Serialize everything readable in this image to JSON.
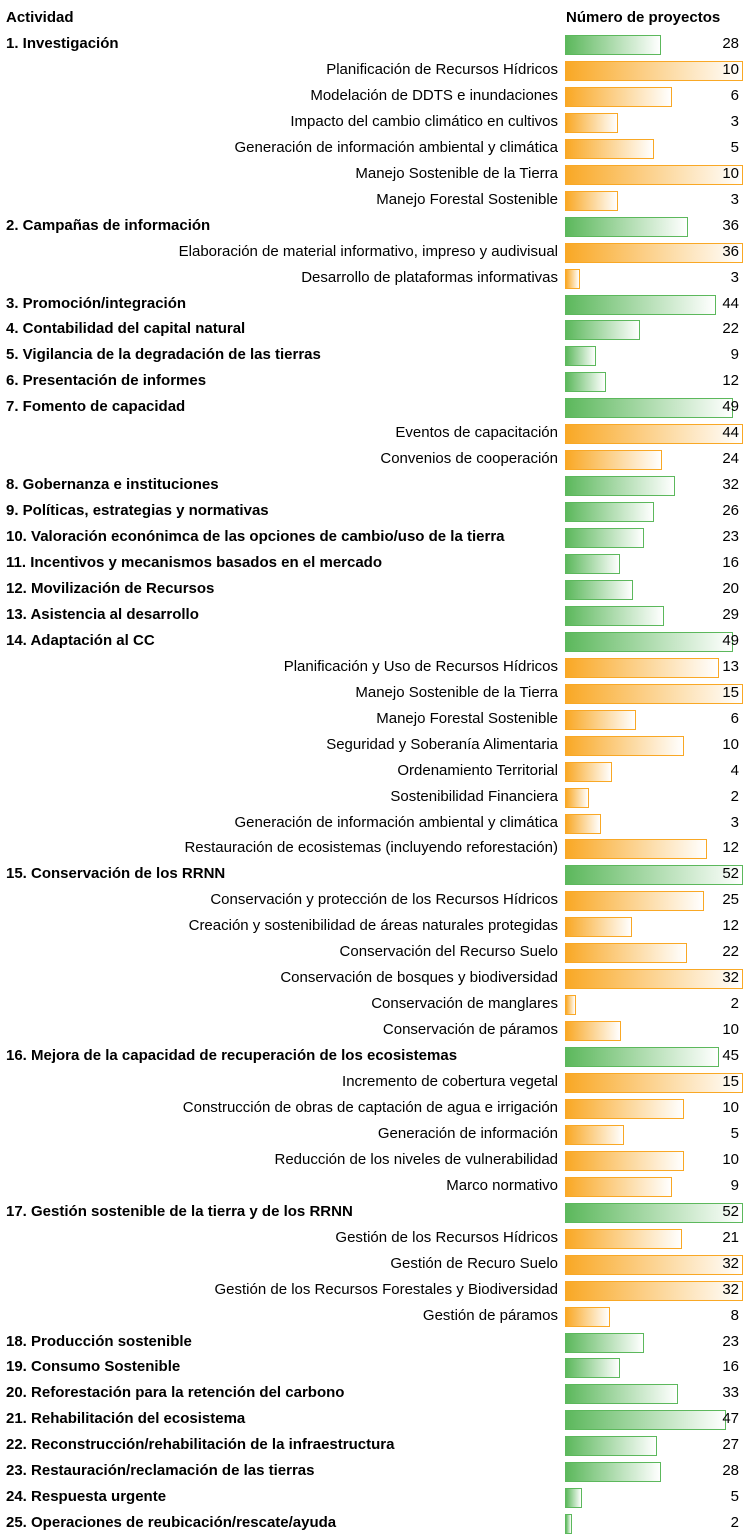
{
  "header": {
    "activity": "Actividad",
    "count": "Número de proyectos"
  },
  "rows": [
    {
      "label": "1. Investigación",
      "value": 28,
      "main": true
    },
    {
      "label": "Planificación de Recursos Hídricos",
      "value": 10,
      "main": false
    },
    {
      "label": "Modelación de DDTS e inundaciones",
      "value": 6,
      "main": false
    },
    {
      "label": "Impacto del cambio climático en cultivos",
      "value": 3,
      "main": false
    },
    {
      "label": "Generación de información ambiental y climática",
      "value": 5,
      "main": false
    },
    {
      "label": "Manejo Sostenible de la Tierra",
      "value": 10,
      "main": false
    },
    {
      "label": "Manejo Forestal Sostenible",
      "value": 3,
      "main": false
    },
    {
      "label": "2. Campañas de información",
      "value": 36,
      "main": true
    },
    {
      "label": "Elaboración de material informativo, impreso y audivisual",
      "value": 36,
      "main": false
    },
    {
      "label": "Desarrollo de plataformas informativas",
      "value": 3,
      "main": false
    },
    {
      "label": "3. Promoción/integración",
      "value": 44,
      "main": true
    },
    {
      "label": "4. Contabilidad del capital natural",
      "value": 22,
      "main": true
    },
    {
      "label": "5. Vigilancia de la degradación de las tierras",
      "value": 9,
      "main": true
    },
    {
      "label": "6. Presentación de informes",
      "value": 12,
      "main": true
    },
    {
      "label": "7. Fomento de capacidad",
      "value": 49,
      "main": true
    },
    {
      "label": "Eventos de capacitación",
      "value": 44,
      "main": false
    },
    {
      "label": "Convenios de cooperación",
      "value": 24,
      "main": false
    },
    {
      "label": "8. Gobernanza e instituciones",
      "value": 32,
      "main": true
    },
    {
      "label": "9. Políticas, estrategias y normativas",
      "value": 26,
      "main": true
    },
    {
      "label": "10. Valoración econónimca de las opciones de cambio/uso de la tierra",
      "value": 23,
      "main": true
    },
    {
      "label": "11. Incentivos y mecanismos basados en el mercado",
      "value": 16,
      "main": true
    },
    {
      "label": "12. Movilización de Recursos",
      "value": 20,
      "main": true
    },
    {
      "label": "13. Asistencia al desarrollo",
      "value": 29,
      "main": true
    },
    {
      "label": "14. Adaptación al CC",
      "value": 49,
      "main": true
    },
    {
      "label": "Planificación y Uso de Recursos Hídricos",
      "value": 13,
      "main": false
    },
    {
      "label": "Manejo Sostenible de la Tierra",
      "value": 15,
      "main": false
    },
    {
      "label": "Manejo Forestal Sostenible",
      "value": 6,
      "main": false
    },
    {
      "label": "Seguridad y Soberanía Alimentaria",
      "value": 10,
      "main": false
    },
    {
      "label": "Ordenamiento Territorial",
      "value": 4,
      "main": false
    },
    {
      "label": "Sostenibilidad Financiera",
      "value": 2,
      "main": false
    },
    {
      "label": "Generación de información ambiental y climática",
      "value": 3,
      "main": false
    },
    {
      "label": "Restauración de ecosistemas (incluyendo reforestación)",
      "value": 12,
      "main": false
    },
    {
      "label": "15. Conservación de los RRNN",
      "value": 52,
      "main": true
    },
    {
      "label": "Conservación y protección de los Recursos Hídricos",
      "value": 25,
      "main": false
    },
    {
      "label": "Creación y sostenibilidad de áreas naturales protegidas",
      "value": 12,
      "main": false
    },
    {
      "label": "Conservación del Recurso Suelo",
      "value": 22,
      "main": false
    },
    {
      "label": "Conservación de bosques y biodiversidad",
      "value": 32,
      "main": false
    },
    {
      "label": "Conservación de manglares",
      "value": 2,
      "main": false
    },
    {
      "label": "Conservación de páramos",
      "value": 10,
      "main": false
    },
    {
      "label": "16. Mejora de la capacidad de recuperación de los ecosistemas",
      "value": 45,
      "main": true
    },
    {
      "label": "Incremento de cobertura vegetal",
      "value": 15,
      "main": false
    },
    {
      "label": "Construcción de obras de captación de agua e irrigación",
      "value": 10,
      "main": false
    },
    {
      "label": "Generación de información",
      "value": 5,
      "main": false
    },
    {
      "label": "Reducción de los niveles de vulnerabilidad",
      "value": 10,
      "main": false
    },
    {
      "label": "Marco normativo",
      "value": 9,
      "main": false
    },
    {
      "label": "17. Gestión sostenible de la tierra y de los RRNN",
      "value": 52,
      "main": true
    },
    {
      "label": "Gestión de los Recursos Hídricos",
      "value": 21,
      "main": false
    },
    {
      "label": "Gestión de Recuro Suelo",
      "value": 32,
      "main": false
    },
    {
      "label": "Gestión de los Recursos Forestales y Biodiversidad",
      "value": 32,
      "main": false
    },
    {
      "label": "Gestión de páramos",
      "value": 8,
      "main": false
    },
    {
      "label": "18. Producción sostenible",
      "value": 23,
      "main": true
    },
    {
      "label": "19. Consumo Sostenible",
      "value": 16,
      "main": true
    },
    {
      "label": "20. Reforestación para la retención del carbono",
      "value": 33,
      "main": true
    },
    {
      "label": "21. Rehabilitación del ecosistema",
      "value": 47,
      "main": true
    },
    {
      "label": "22. Reconstrucción/rehabilitación de la infraestructura",
      "value": 27,
      "main": true
    },
    {
      "label": "23. Restauración/reclamación de las tierras",
      "value": 28,
      "main": true
    },
    {
      "label": "24. Respuesta urgente",
      "value": 5,
      "main": true
    },
    {
      "label": "25. Operaciones de reubicación/rescate/ayuda",
      "value": 2,
      "main": true
    }
  ]
}
